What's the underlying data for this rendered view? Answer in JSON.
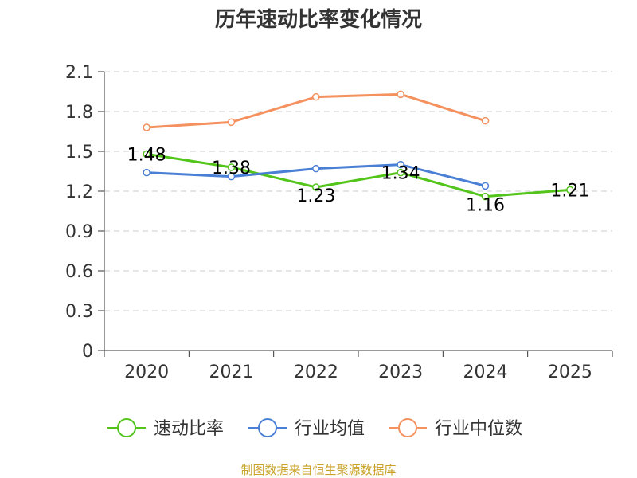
{
  "chart_data": {
    "type": "line",
    "title": "历年速动比率变化情况",
    "categories": [
      "2020",
      "2021",
      "2022",
      "2023",
      "2024",
      "2025"
    ],
    "ylim": [
      0,
      2.1
    ],
    "yticks": [
      "0",
      "0.3",
      "0.6",
      "0.9",
      "1.2",
      "1.5",
      "1.8",
      "2.1"
    ],
    "grid": true,
    "legend_position": "bottom",
    "series": [
      {
        "name": "速动比率",
        "color": "#52c41a",
        "values": [
          1.48,
          1.38,
          1.23,
          1.34,
          1.16,
          1.21
        ],
        "labels": [
          "1.48",
          "1.38",
          "1.23",
          "1.34",
          "1.16",
          "1.21"
        ]
      },
      {
        "name": "行业均值",
        "color": "#4a7fd6",
        "values": [
          1.34,
          1.31,
          1.37,
          1.4,
          1.24,
          null
        ]
      },
      {
        "name": "行业中位数",
        "color": "#f4915e",
        "values": [
          1.68,
          1.72,
          1.91,
          1.93,
          1.73,
          null
        ]
      }
    ],
    "source": "制图数据来自恒生聚源数据库"
  }
}
